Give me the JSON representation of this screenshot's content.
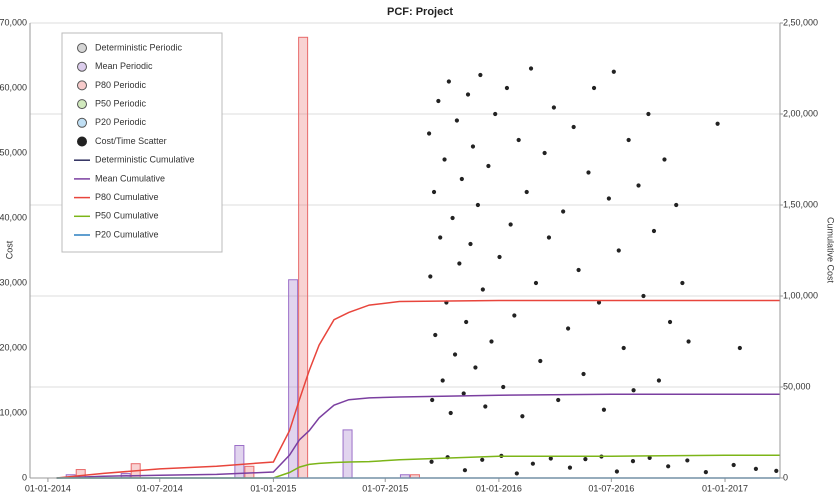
{
  "chart_data": {
    "type": "combo",
    "title": "PCF: Project",
    "y_label": "Cost",
    "y2_label": "Cumulative Cost",
    "xlim": [
      "2013-12-03",
      "2017-03-31"
    ],
    "xticks": [
      {
        "value": "2014-01-01",
        "label": "01-01-2014"
      },
      {
        "value": "2014-07-01",
        "label": "01-07-2014"
      },
      {
        "value": "2015-01-01",
        "label": "01-01-2015"
      },
      {
        "value": "2015-07-01",
        "label": "01-07-2015"
      },
      {
        "value": "2016-01-01",
        "label": "01-01-2016"
      },
      {
        "value": "2016-07-01",
        "label": "01-07-2016"
      },
      {
        "value": "2017-01-01",
        "label": "01-01-2017"
      }
    ],
    "ylim": [
      0,
      70000
    ],
    "yticks": [
      0,
      {
        "value": 10000,
        "label": "10,000"
      },
      {
        "value": 20000,
        "label": "20,000"
      },
      {
        "value": 30000,
        "label": "30,000"
      },
      {
        "value": 40000,
        "label": "40,000"
      },
      {
        "value": 50000,
        "label": "50,000"
      },
      {
        "value": 60000,
        "label": "60,000"
      },
      {
        "value": 70000,
        "label": "70,000"
      }
    ],
    "y2lim": [
      0,
      250000
    ],
    "y2ticks": [
      0,
      {
        "value": 50000,
        "label": "50,000"
      },
      {
        "value": 100000,
        "label": "1,00,000"
      },
      {
        "value": 150000,
        "label": "1,50,000"
      },
      {
        "value": 200000,
        "label": "2,00,000"
      },
      {
        "value": 250000,
        "label": "2,50,000"
      }
    ],
    "grid": "y2",
    "legend": "top-left",
    "series": [
      {
        "name": "Deterministic Periodic",
        "kind": "bar",
        "color": "#888888",
        "x": [
          "2014-02-15",
          "2014-05-15",
          "2014-11-15",
          "2015-02-10",
          "2015-05-01",
          "2015-08-10"
        ],
        "values": [
          null,
          null,
          null,
          null,
          null,
          null
        ]
      },
      {
        "name": "Mean Periodic",
        "kind": "bar",
        "color": "#9b6fc8",
        "x": [
          "2014-02-15",
          "2014-05-15",
          "2014-11-15",
          "2015-02-10",
          "2015-05-01",
          "2015-08-10"
        ],
        "values": [
          500,
          700,
          5000,
          30500,
          7400,
          500
        ]
      },
      {
        "name": "P80 Periodic",
        "kind": "bar",
        "color": "#e86a6a",
        "x": [
          "2014-02-15",
          "2014-05-15",
          "2014-11-15",
          "2015-02-10",
          "2015-05-01",
          "2015-08-10"
        ],
        "values": [
          1300,
          2200,
          1800,
          67800,
          null,
          500
        ]
      },
      {
        "name": "P50 Periodic",
        "kind": "bar",
        "color": "#7ac143",
        "x": [
          "2014-02-15",
          "2014-05-15",
          "2014-11-15",
          "2015-02-10",
          "2015-05-01",
          "2015-08-10"
        ],
        "values": [
          null,
          null,
          null,
          null,
          null,
          null
        ]
      },
      {
        "name": "P20 Periodic",
        "kind": "bar",
        "color": "#4aa3df",
        "x": [
          "2014-02-15",
          "2014-05-15",
          "2014-11-15",
          "2015-02-10",
          "2015-05-01",
          "2015-08-10"
        ],
        "values": [
          null,
          null,
          null,
          null,
          null,
          null
        ]
      },
      {
        "name": "Cost/Time Scatter",
        "kind": "scatter",
        "color": "#222222",
        "x": [
          "2015-09-10",
          "2015-09-12",
          "2015-09-15",
          "2015-09-18",
          "2015-09-20",
          "2015-09-25",
          "2015-09-28",
          "2015-10-02",
          "2015-10-05",
          "2015-10-08",
          "2015-10-12",
          "2015-10-15",
          "2015-10-18",
          "2015-10-22",
          "2015-10-25",
          "2015-10-29",
          "2015-11-02",
          "2015-11-05",
          "2015-11-09",
          "2015-11-12",
          "2015-11-16",
          "2015-11-20",
          "2015-11-24",
          "2015-11-28",
          "2015-12-02",
          "2015-12-06",
          "2015-12-10",
          "2015-12-15",
          "2015-12-20",
          "2015-12-26",
          "2016-01-02",
          "2016-01-08",
          "2016-01-14",
          "2016-01-20",
          "2016-01-26",
          "2016-02-02",
          "2016-02-08",
          "2016-02-15",
          "2016-02-22",
          "2016-03-01",
          "2016-03-08",
          "2016-03-15",
          "2016-03-22",
          "2016-03-30",
          "2016-04-06",
          "2016-04-14",
          "2016-04-22",
          "2016-05-01",
          "2016-05-09",
          "2016-05-17",
          "2016-05-25",
          "2016-06-03",
          "2016-06-11",
          "2016-06-19",
          "2016-06-27",
          "2016-07-05",
          "2016-07-13",
          "2016-07-21",
          "2016-07-29",
          "2016-08-06",
          "2016-08-14",
          "2016-08-22",
          "2016-08-30",
          "2016-09-08",
          "2016-09-16",
          "2016-09-25",
          "2016-10-04",
          "2016-10-14",
          "2016-10-24",
          "2016-11-03",
          "2016-12-20",
          "2017-01-25",
          "2015-09-14",
          "2015-10-10",
          "2015-11-07",
          "2015-12-05",
          "2016-01-05",
          "2016-01-30",
          "2016-02-25",
          "2016-03-25",
          "2016-04-25",
          "2016-05-20",
          "2016-06-15",
          "2016-07-10",
          "2016-08-05",
          "2016-09-01",
          "2016-10-01",
          "2016-11-01",
          "2016-12-01",
          "2017-01-15",
          "2017-02-20",
          "2017-03-25"
        ],
        "values": [
          53000,
          31000,
          12000,
          44000,
          22000,
          58000,
          37000,
          15000,
          49000,
          27000,
          61000,
          10000,
          40000,
          19000,
          55000,
          33000,
          46000,
          13000,
          24000,
          59000,
          36000,
          51000,
          17000,
          42000,
          62000,
          29000,
          11000,
          48000,
          21000,
          56000,
          34000,
          14000,
          60000,
          39000,
          25000,
          52000,
          9500,
          44000,
          63000,
          30000,
          18000,
          50000,
          37000,
          57000,
          12000,
          41000,
          23000,
          54000,
          32000,
          16000,
          47000,
          60000,
          27000,
          10500,
          43000,
          62500,
          35000,
          20000,
          52000,
          13500,
          45000,
          28000,
          56000,
          38000,
          15000,
          49000,
          24000,
          42000,
          30000,
          21000,
          54500,
          20000,
          2500,
          3200,
          1200,
          2800,
          3400,
          700,
          2200,
          3000,
          1600,
          2900,
          3300,
          1000,
          2600,
          3100,
          1800,
          2700,
          900,
          2000,
          1400,
          1100
        ]
      },
      {
        "name": "Deterministic Cumulative",
        "kind": "line",
        "axis": "y2",
        "color": "#2e2e5e",
        "x": [
          "2014-01-15",
          "2014-04-01",
          "2014-07-01",
          "2014-10-01",
          "2015-01-01",
          "2015-01-27",
          "2015-02-12",
          "2015-02-28",
          "2015-03-16",
          "2015-04-09",
          "2015-05-03",
          "2015-06-05",
          "2015-07-24",
          "2016-01-01",
          "2016-07-01",
          "2017-01-01",
          "2017-03-31"
        ],
        "values": [
          null,
          null,
          null,
          null,
          null,
          null,
          null,
          null,
          null,
          null,
          null,
          null,
          null,
          null,
          null,
          null,
          null
        ]
      },
      {
        "name": "Mean Cumulative",
        "kind": "line",
        "axis": "y2",
        "color": "#7b3fa0",
        "x": [
          "2014-01-15",
          "2014-04-01",
          "2014-07-01",
          "2014-10-01",
          "2015-01-01",
          "2015-01-27",
          "2015-02-12",
          "2015-02-28",
          "2015-03-16",
          "2015-04-09",
          "2015-05-03",
          "2015-06-05",
          "2015-07-24",
          "2016-01-01",
          "2016-07-01",
          "2017-01-01",
          "2017-03-31"
        ],
        "values": [
          0,
          1000,
          1500,
          2000,
          3300,
          12600,
          21000,
          26000,
          33000,
          40000,
          43000,
          44000,
          44500,
          45500,
          46000,
          46000,
          46000
        ]
      },
      {
        "name": "P80 Cumulative",
        "kind": "line",
        "axis": "y2",
        "color": "#e8453c",
        "x": [
          "2014-01-15",
          "2014-04-01",
          "2014-07-01",
          "2014-10-01",
          "2015-01-01",
          "2015-01-27",
          "2015-02-12",
          "2015-02-28",
          "2015-03-16",
          "2015-04-09",
          "2015-05-03",
          "2015-06-05",
          "2015-07-24",
          "2016-01-01",
          "2016-07-01",
          "2017-01-01",
          "2017-03-31"
        ],
        "values": [
          0,
          2500,
          5000,
          6500,
          8800,
          26000,
          43000,
          59000,
          73000,
          87000,
          91000,
          95000,
          97000,
          97500,
          97500,
          97500,
          97500
        ]
      },
      {
        "name": "P50 Cumulative",
        "kind": "line",
        "axis": "y2",
        "color": "#7cb518",
        "x": [
          "2014-01-15",
          "2014-04-01",
          "2014-07-01",
          "2014-10-01",
          "2015-01-01",
          "2015-01-27",
          "2015-02-12",
          "2015-02-28",
          "2015-03-16",
          "2015-04-09",
          "2015-05-03",
          "2015-06-05",
          "2015-07-24",
          "2016-01-01",
          "2016-07-01",
          "2017-01-01",
          "2017-03-31"
        ],
        "values": [
          0,
          0,
          0,
          0,
          0,
          3000,
          6000,
          7500,
          8000,
          8500,
          8800,
          9000,
          10000,
          12000,
          12000,
          12500,
          12500
        ]
      },
      {
        "name": "P20 Cumulative",
        "kind": "line",
        "axis": "y2",
        "color": "#2a7fc1",
        "x": [
          "2014-01-15",
          "2014-04-01",
          "2014-07-01",
          "2014-10-01",
          "2015-01-01",
          "2015-01-27",
          "2015-02-12",
          "2015-02-28",
          "2015-03-16",
          "2015-04-09",
          "2015-05-03",
          "2015-06-05",
          "2015-07-24",
          "2016-01-01",
          "2016-07-01",
          "2017-01-01",
          "2017-03-31"
        ],
        "values": [
          0,
          0,
          0,
          0,
          0,
          0,
          0,
          0,
          0,
          0,
          0,
          0,
          0,
          0,
          0,
          0,
          0
        ]
      }
    ]
  }
}
